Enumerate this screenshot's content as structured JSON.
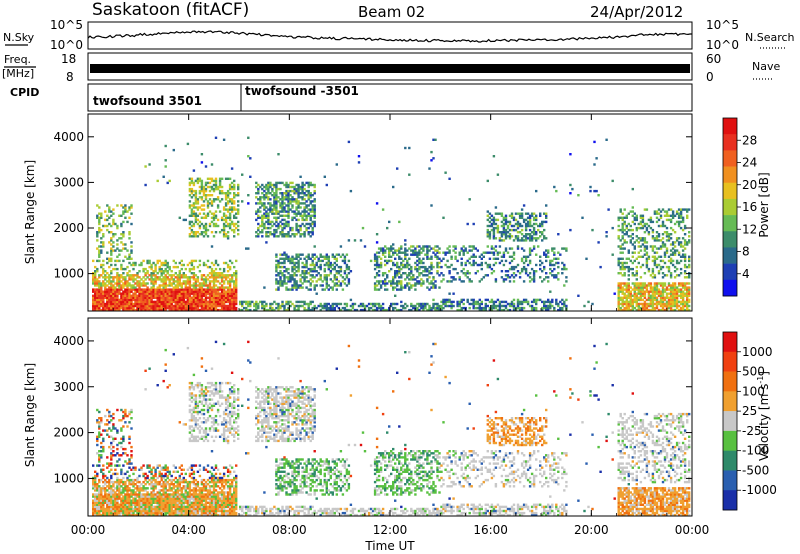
{
  "header": {
    "station": "Saskatoon (fitACF)",
    "beam": "Beam 02",
    "date": "24/Apr/2012"
  },
  "summary_panels": {
    "nsky_label": "N.Sky",
    "nsky_ticks": [
      "10^5",
      "10^0"
    ],
    "nsearch_label": "N.Search",
    "freq_label_1": "Freq.",
    "freq_label_2": "[MHz]",
    "freq_ticks": [
      "18",
      "8"
    ],
    "nave_label": "Nave",
    "nave_ticks": [
      "60",
      "0"
    ],
    "cpid_label": "CPID",
    "cpid_entries": [
      {
        "label": "twofsound 3501",
        "start_hour": 0
      },
      {
        "label": "twofsound -3501",
        "start_hour": 6
      }
    ]
  },
  "chart_data": [
    {
      "type": "heatmap",
      "name": "power",
      "ylabel": "Slant Range [km]",
      "xlabel": "Time UT",
      "ylim": [
        180,
        4500
      ],
      "xlim": [
        0,
        24
      ],
      "y_ticks": [
        1000,
        2000,
        3000,
        4000
      ],
      "x_ticks": [
        "00:00",
        "04:00",
        "08:00",
        "12:00",
        "16:00",
        "20:00",
        "00:00"
      ],
      "colorbar": {
        "label": "Power [dB]",
        "ticks": [
          4,
          8,
          12,
          16,
          20,
          24,
          28
        ],
        "colors": [
          "#1010ee",
          "#1e3fb4",
          "#2a6a8a",
          "#3c8c6a",
          "#66bb55",
          "#aacc33",
          "#e8c020",
          "#f09020",
          "#f06020",
          "#e83020",
          "#e01010"
        ]
      }
    },
    {
      "type": "heatmap",
      "name": "velocity",
      "ylabel": "Slant Range [km]",
      "xlabel": "Time UT",
      "ylim": [
        180,
        4500
      ],
      "xlim": [
        0,
        24
      ],
      "y_ticks": [
        1000,
        2000,
        3000,
        4000
      ],
      "x_ticks": [
        "00:00",
        "04:00",
        "08:00",
        "12:00",
        "16:00",
        "20:00",
        "00:00"
      ],
      "colorbar": {
        "label_main": "Velocity [m s",
        "label_sup": "-1",
        "label_end": "]",
        "ticks": [
          "1000",
          "500",
          "100",
          "25",
          "-25",
          "-100",
          "-500",
          "-1000"
        ],
        "colors": [
          "#1a2fa8",
          "#2a5fb0",
          "#2e8a6a",
          "#58c040",
          "#c8c8c8",
          "#f0a030",
          "#f07010",
          "#f04010",
          "#e01010"
        ]
      }
    }
  ]
}
